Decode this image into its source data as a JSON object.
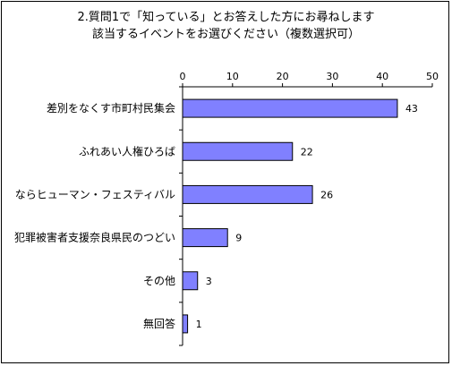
{
  "chart_data": {
    "type": "bar",
    "orientation": "horizontal",
    "title_lines": [
      "2.質問1で「知っている」とお答えした方にお尋ねします",
      "該当するイベントをお選びください（複数選択可）"
    ],
    "categories": [
      "差別をなくす市町村民集会",
      "ふれあい人権ひろば",
      "ならヒューマン・フェスティバル",
      "犯罪被害者支援奈良県民のつどい",
      "その他",
      "無回答"
    ],
    "values": [
      43,
      22,
      26,
      9,
      3,
      1
    ],
    "xlim": [
      0,
      50
    ],
    "xticks": [
      0,
      10,
      20,
      30,
      40,
      50
    ],
    "grid": false,
    "legend": "none",
    "bar_color": "#8080ff",
    "bar_edge_color": "#000000"
  }
}
